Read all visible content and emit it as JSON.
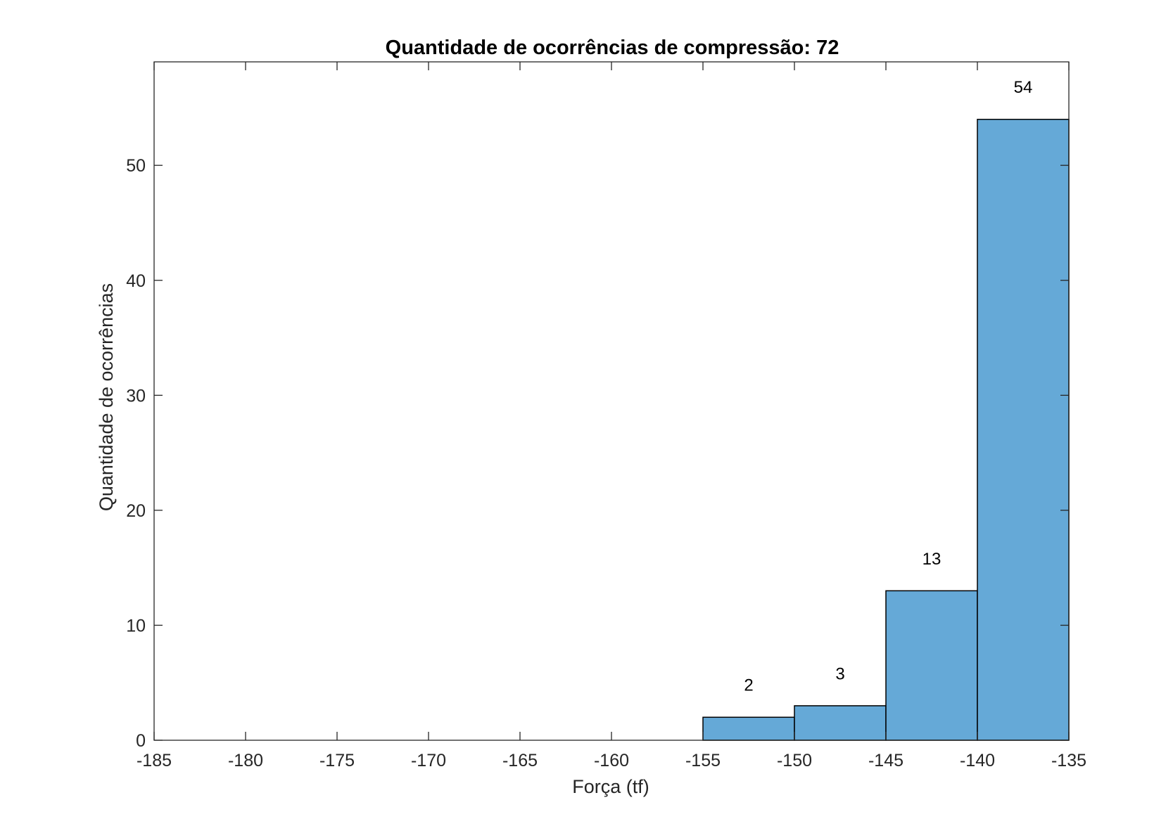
{
  "chart_data": {
    "type": "bar",
    "title": "Quantidade de ocorrências de compressão: 72",
    "xlabel": "Força (tf)",
    "ylabel": "Quantidade de ocorrências",
    "xlim": [
      -185,
      -135
    ],
    "ylim": [
      0,
      59
    ],
    "xticks": [
      -185,
      -180,
      -175,
      -170,
      -165,
      -160,
      -155,
      -150,
      -145,
      -140,
      -135
    ],
    "yticks": [
      0,
      10,
      20,
      30,
      40,
      50
    ],
    "bins": [
      {
        "from": -155,
        "to": -150,
        "value": 2,
        "label": "2"
      },
      {
        "from": -150,
        "to": -145,
        "value": 3,
        "label": "3"
      },
      {
        "from": -145,
        "to": -140,
        "value": 13,
        "label": "13"
      },
      {
        "from": -140,
        "to": -135,
        "value": 54,
        "label": "54"
      }
    ],
    "bar_color": "#65a9d7",
    "edge_color": "#000000",
    "grid": false
  }
}
